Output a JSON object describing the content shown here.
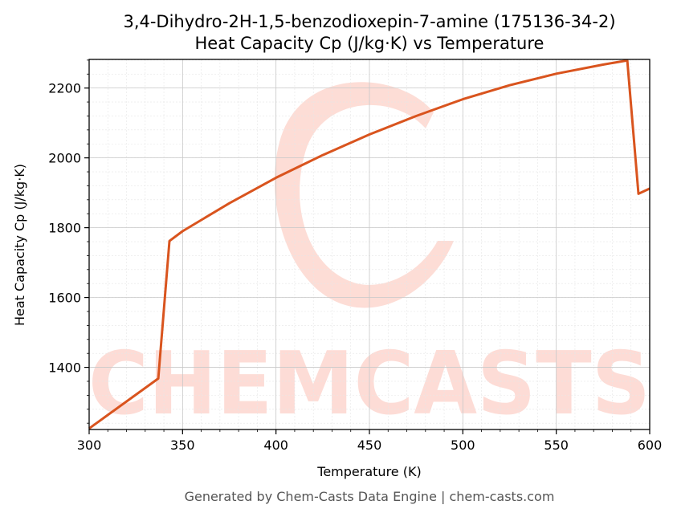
{
  "title_line1": "3,4-Dihydro-2H-1,5-benzodioxepin-7-amine (175136-34-2)",
  "title_line2": "Heat Capacity Cp (J/kg·K) vs Temperature",
  "footer": "Generated by Chem-Casts Data Engine | chem-casts.com",
  "watermark": "CHEMCASTS",
  "colors": {
    "line": "#d9541e",
    "watermark": "#fdd9d2",
    "grid": "#d0d0d0"
  },
  "chart_data": {
    "type": "line",
    "xlabel": "Temperature (K)",
    "ylabel": "Heat Capacity Cp (J/kg·K)",
    "xlim": [
      300,
      600
    ],
    "ylim": [
      1222,
      2282
    ],
    "xticks": [
      300,
      350,
      400,
      450,
      500,
      550,
      600
    ],
    "yticks": [
      1400,
      1600,
      1800,
      2000,
      2200
    ],
    "grid": true,
    "series": [
      {
        "x": [
          300,
          337,
          343,
          350,
          375,
          400,
          425,
          450,
          475,
          500,
          525,
          550,
          575,
          588,
          594,
          600
        ],
        "y": [
          1225,
          1368,
          1762,
          1790,
          1870,
          1943,
          2008,
          2067,
          2120,
          2168,
          2208,
          2241,
          2267,
          2279,
          1897,
          1912
        ]
      }
    ]
  }
}
